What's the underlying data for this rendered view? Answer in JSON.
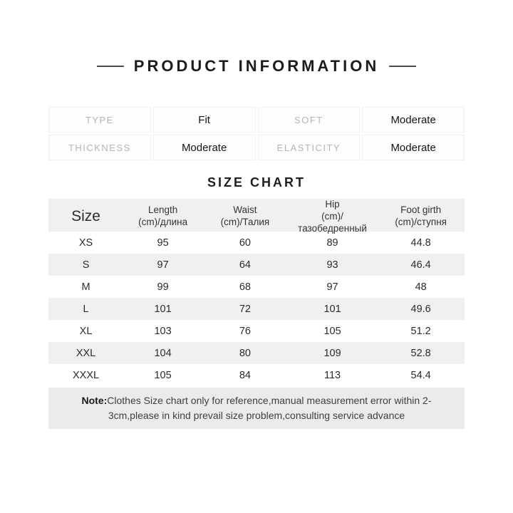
{
  "header": {
    "title": "PRODUCT INFORMATION"
  },
  "attribute_table": {
    "rows": [
      {
        "label1": "TYPE",
        "value1": "Fit",
        "label2": "SOFT",
        "value2": "Moderate"
      },
      {
        "label1": "THICKNESS",
        "value1": "Moderate",
        "label2": "ELASTICITY",
        "value2": "Moderate"
      }
    ]
  },
  "size_chart": {
    "heading": "SIZE CHART",
    "columns": [
      {
        "name": "Size",
        "sub": ""
      },
      {
        "name": "Length",
        "sub": "(cm)/длина"
      },
      {
        "name": "Waist",
        "sub": "(cm)/Талия"
      },
      {
        "name": "Hip",
        "sub": "(cm)/тазобедренный"
      },
      {
        "name": "Foot girth",
        "sub": "(cm)/ступня"
      }
    ],
    "rows": [
      {
        "size": "XS",
        "length": "95",
        "waist": "60",
        "hip": "89",
        "foot_girth": "44.8"
      },
      {
        "size": "S",
        "length": "97",
        "waist": "64",
        "hip": "93",
        "foot_girth": "46.4"
      },
      {
        "size": "M",
        "length": "99",
        "waist": "68",
        "hip": "97",
        "foot_girth": "48"
      },
      {
        "size": "L",
        "length": "101",
        "waist": "72",
        "hip": "101",
        "foot_girth": "49.6"
      },
      {
        "size": "XL",
        "length": "103",
        "waist": "76",
        "hip": "105",
        "foot_girth": "51.2"
      },
      {
        "size": "XXL",
        "length": "104",
        "waist": "80",
        "hip": "109",
        "foot_girth": "52.8"
      },
      {
        "size": "XXXL",
        "length": "105",
        "waist": "84",
        "hip": "113",
        "foot_girth": "54.4"
      }
    ]
  },
  "note": {
    "label": "Note:",
    "text": "Clothes Size chart only for reference,manual measurement error within 2-3cm,please in kind prevail size problem,consulting service advance"
  },
  "colors": {
    "row_shade": "#f0f0f0",
    "note_background": "#ebebeb",
    "label_gray": "#b5b5b5",
    "text_dark": "#1c1c1c"
  }
}
